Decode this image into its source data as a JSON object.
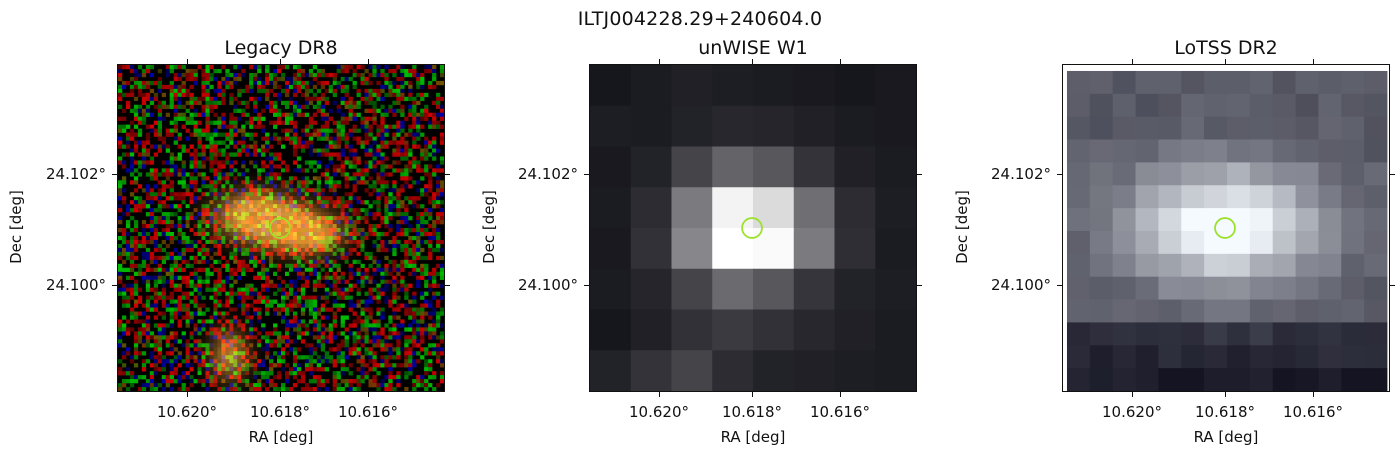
{
  "figure": {
    "title": "ILTJ004228.29+240604.0"
  },
  "axes_text": {
    "xlabel": "RA [deg]",
    "ylabel": "Dec [deg]",
    "xticks": [
      "10.620°",
      "10.618°",
      "10.616°"
    ],
    "yticks": [
      "24.102°",
      "24.100°"
    ]
  },
  "panels": [
    {
      "title": "Legacy DR8",
      "marker_color": "#9be22a"
    },
    {
      "title": "unWISE W1",
      "marker_color": "#9be22a"
    },
    {
      "title": "LoTSS DR2",
      "marker_color": "#9be22a"
    }
  ]
}
